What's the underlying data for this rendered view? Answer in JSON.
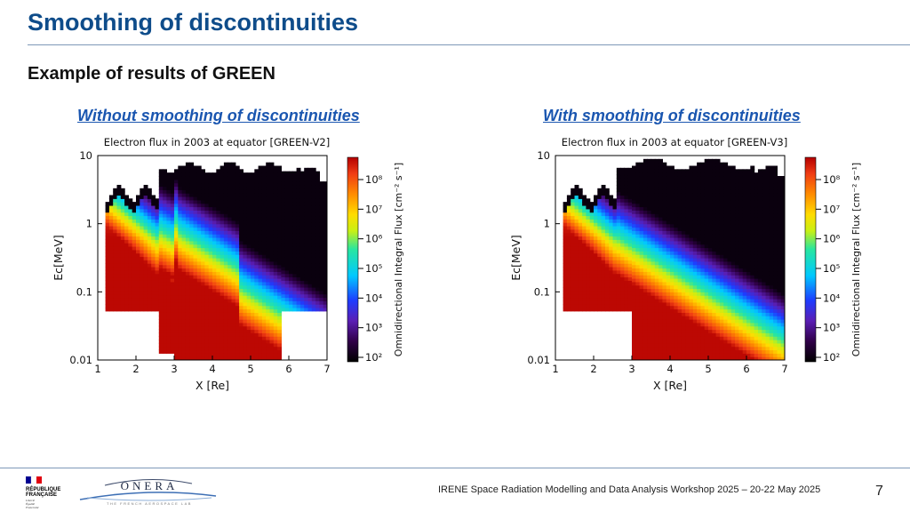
{
  "slide": {
    "title": "Smoothing of discontinuities",
    "subtitle": "Example of results of GREEN",
    "caption_left": "Without smoothing of discontinuities",
    "caption_right": "With smoothing of discontinuities",
    "footer": "IRENE Space Radiation Modelling and Data Analysis Workshop 2025 – 20-22 May 2025",
    "page_number": "7",
    "logos": {
      "republic_lines": [
        "RÉPUBLIQUE",
        "FRANÇAISE"
      ],
      "republic_motto": [
        "Liberté",
        "Égalité",
        "Fraternité"
      ],
      "onera_name": "ONERA",
      "onera_tagline": "THE FRENCH AEROSPACE LAB"
    }
  },
  "chart_data": [
    {
      "type": "heatmap",
      "title": "Electron flux in 2003 at equator [GREEN-V2]",
      "xlabel": "X [Re]",
      "ylabel": "Ec[MeV]",
      "x_ticks": [
        "1",
        "2",
        "3",
        "4",
        "5",
        "6",
        "7"
      ],
      "y_ticks": [
        "10",
        "1",
        "0.1",
        "0.01"
      ],
      "xlim": [
        1,
        7
      ],
      "ylim": [
        0.01,
        10
      ],
      "y_scale": "log",
      "colorbar_label": "Omnidirectional Integral Flux [cm⁻² s⁻¹]",
      "colorbar_ticks": [
        "10⁸",
        "10⁷",
        "10⁶",
        "10⁵",
        "10⁴",
        "10³",
        "10²"
      ],
      "colorscale": "rainbow (black → purple → blue → cyan → green → yellow → orange → red)",
      "smoothing": false
    },
    {
      "type": "heatmap",
      "title": "Electron flux in 2003 at equator [GREEN-V3]",
      "xlabel": "X [Re]",
      "ylabel": "Ec[MeV]",
      "x_ticks": [
        "1",
        "2",
        "3",
        "4",
        "5",
        "6",
        "7"
      ],
      "y_ticks": [
        "10",
        "1",
        "0.1",
        "0.01"
      ],
      "xlim": [
        1,
        7
      ],
      "ylim": [
        0.01,
        10
      ],
      "y_scale": "log",
      "colorbar_label": "Omnidirectional Integral Flux [cm⁻² s⁻¹]",
      "colorbar_ticks": [
        "10⁸",
        "10⁷",
        "10⁶",
        "10⁵",
        "10⁴",
        "10³",
        "10²"
      ],
      "colorscale": "rainbow (black → purple → blue → cyan → green → yellow → orange → red)",
      "smoothing": true
    }
  ]
}
